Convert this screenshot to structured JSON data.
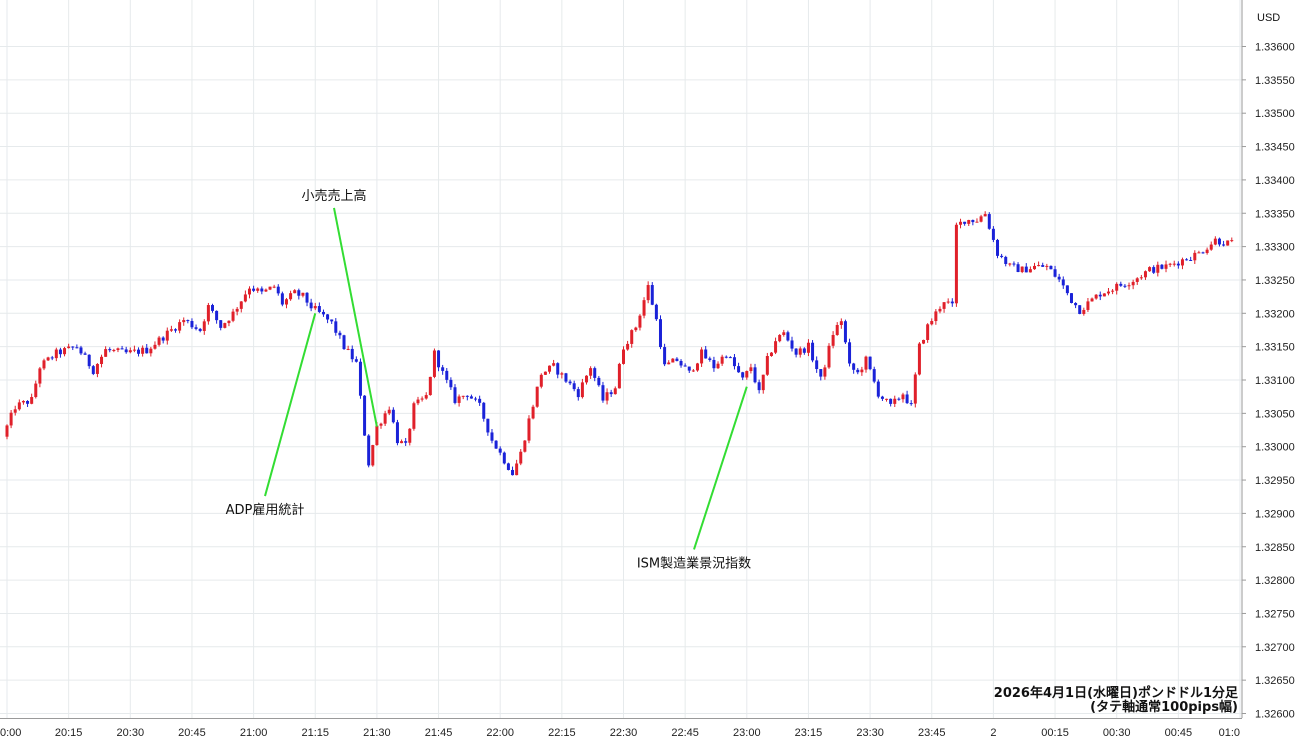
{
  "chart_data": {
    "type": "candlestick",
    "currency_label": "USD",
    "caption_line1": "2026年4月1日(水曜日)ポンドドル1分足",
    "caption_line2": "(タテ軸通常100pips幅)",
    "ylim": [
      1.326,
      1.3365
    ],
    "y_ticks": [
      "1.33600",
      "1.33550",
      "1.33500",
      "1.33450",
      "1.33400",
      "1.33350",
      "1.33300",
      "1.33250",
      "1.33200",
      "1.33150",
      "1.33100",
      "1.33050",
      "1.33000",
      "1.32950",
      "1.32900",
      "1.32850",
      "1.32800",
      "1.32750",
      "1.32700",
      "1.32650",
      "1.32600"
    ],
    "x_ticks": [
      "0:00",
      "20:15",
      "20:30",
      "20:45",
      "21:00",
      "21:15",
      "21:30",
      "21:45",
      "22:00",
      "22:15",
      "22:30",
      "22:45",
      "23:00",
      "23:15",
      "23:30",
      "23:45",
      "2",
      "00:15",
      "00:30",
      "00:45",
      "01:0"
    ],
    "x_tick_minutes": [
      0,
      15,
      30,
      45,
      60,
      75,
      90,
      105,
      120,
      135,
      150,
      165,
      180,
      195,
      210,
      225,
      240,
      255,
      270,
      285,
      300
    ],
    "x_range_minutes": [
      -1,
      301
    ],
    "colors": {
      "up": "#e0202a",
      "down": "#1a22d8",
      "grid": "#e6eaec",
      "annotation_line": "#33dd33"
    },
    "annotations": [
      {
        "label": "小売売上高",
        "time_minute": 90,
        "price": 1.3303,
        "label_price": 1.33376
      },
      {
        "label": "ADP雇用統計",
        "time_minute": 75,
        "price": 1.332,
        "label_price": 1.32905
      },
      {
        "label": "ISM製造業景況指数",
        "time_minute": 180,
        "price": 1.3309,
        "label_price": 1.32825
      }
    ],
    "anchors": [
      [
        0,
        1.33015
      ],
      [
        3,
        1.3306
      ],
      [
        7,
        1.3307
      ],
      [
        9,
        1.3312
      ],
      [
        13,
        1.3314
      ],
      [
        18,
        1.3315
      ],
      [
        22,
        1.33115
      ],
      [
        25,
        1.33145
      ],
      [
        30,
        1.3314
      ],
      [
        35,
        1.33145
      ],
      [
        40,
        1.3317
      ],
      [
        44,
        1.3319
      ],
      [
        48,
        1.33175
      ],
      [
        50,
        1.3321
      ],
      [
        53,
        1.3318
      ],
      [
        56,
        1.332
      ],
      [
        60,
        1.3324
      ],
      [
        63,
        1.3323
      ],
      [
        66,
        1.3324
      ],
      [
        68,
        1.33215
      ],
      [
        71,
        1.3323
      ],
      [
        73,
        1.33225
      ],
      [
        75,
        1.3321
      ],
      [
        77,
        1.332
      ],
      [
        80,
        1.33185
      ],
      [
        83,
        1.3315
      ],
      [
        86,
        1.33125
      ],
      [
        88,
        1.3302
      ],
      [
        89,
        1.32975
      ],
      [
        91,
        1.3303
      ],
      [
        94,
        1.3306
      ],
      [
        96,
        1.3301
      ],
      [
        98,
        1.33
      ],
      [
        100,
        1.3306
      ],
      [
        103,
        1.33075
      ],
      [
        105,
        1.3314
      ],
      [
        107,
        1.3311
      ],
      [
        110,
        1.3307
      ],
      [
        113,
        1.3308
      ],
      [
        116,
        1.3306
      ],
      [
        119,
        1.3301
      ],
      [
        122,
        1.3298
      ],
      [
        124,
        1.3296
      ],
      [
        126,
        1.3299
      ],
      [
        128,
        1.3304
      ],
      [
        131,
        1.3311
      ],
      [
        134,
        1.3312
      ],
      [
        137,
        1.331
      ],
      [
        140,
        1.3308
      ],
      [
        143,
        1.3312
      ],
      [
        146,
        1.3307
      ],
      [
        149,
        1.3309
      ],
      [
        151,
        1.3315
      ],
      [
        154,
        1.3318
      ],
      [
        157,
        1.3324
      ],
      [
        159,
        1.3319
      ],
      [
        161,
        1.3312
      ],
      [
        164,
        1.3313
      ],
      [
        167,
        1.3311
      ],
      [
        170,
        1.3314
      ],
      [
        173,
        1.3312
      ],
      [
        176,
        1.3314
      ],
      [
        178,
        1.3312
      ],
      [
        180,
        1.331
      ],
      [
        182,
        1.3312
      ],
      [
        184,
        1.3308
      ],
      [
        186,
        1.3313
      ],
      [
        188,
        1.3316
      ],
      [
        190,
        1.3317
      ],
      [
        193,
        1.3314
      ],
      [
        196,
        1.3315
      ],
      [
        199,
        1.331
      ],
      [
        202,
        1.3317
      ],
      [
        204,
        1.3319
      ],
      [
        206,
        1.3312
      ],
      [
        208,
        1.3311
      ],
      [
        210,
        1.3313
      ],
      [
        213,
        1.3308
      ],
      [
        216,
        1.3306
      ],
      [
        219,
        1.3308
      ],
      [
        221,
        1.3306
      ],
      [
        223,
        1.3315
      ],
      [
        225,
        1.3318
      ],
      [
        227,
        1.332
      ],
      [
        229,
        1.3322
      ],
      [
        231,
        1.3321
      ],
      [
        232,
        1.3333
      ],
      [
        234,
        1.3334
      ],
      [
        237,
        1.3334
      ],
      [
        239,
        1.3335
      ],
      [
        240,
        1.3333
      ],
      [
        242,
        1.3329
      ],
      [
        245,
        1.3327
      ],
      [
        248,
        1.33265
      ],
      [
        251,
        1.3327
      ],
      [
        254,
        1.3327
      ],
      [
        257,
        1.3325
      ],
      [
        260,
        1.3322
      ],
      [
        262,
        1.33205
      ],
      [
        264,
        1.33215
      ],
      [
        267,
        1.3323
      ],
      [
        271,
        1.3324
      ],
      [
        275,
        1.3325
      ],
      [
        279,
        1.33265
      ],
      [
        283,
        1.3327
      ],
      [
        287,
        1.3328
      ],
      [
        291,
        1.3329
      ],
      [
        295,
        1.3331
      ],
      [
        298,
        1.33305
      ]
    ]
  }
}
